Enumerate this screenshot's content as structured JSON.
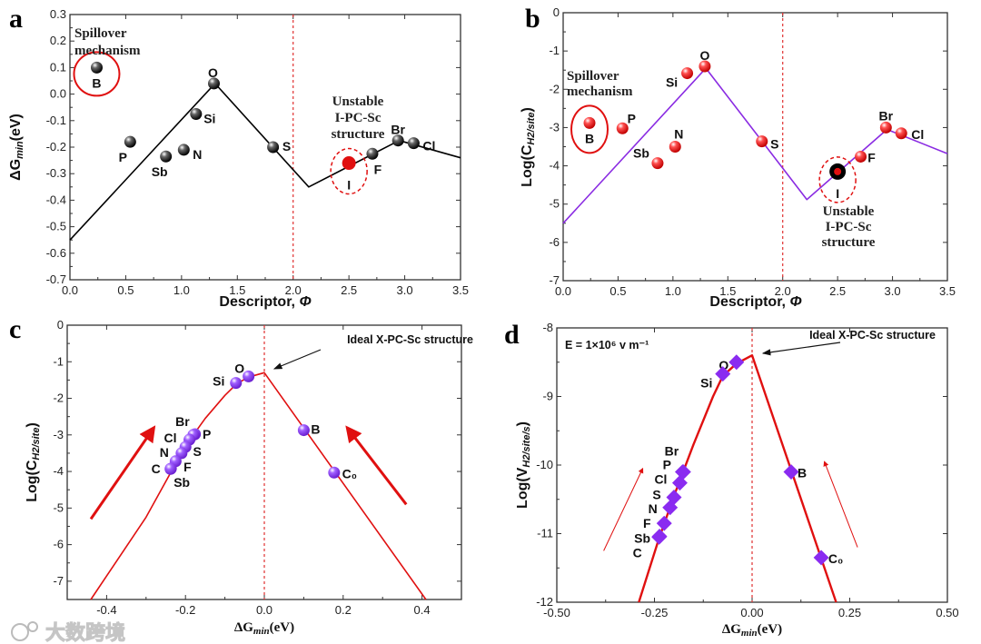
{
  "watermark": "大数跨境",
  "colors": {
    "fit_ab_a": "#000000",
    "fit_b": "#8a2be2",
    "fit_cd": "#e01010",
    "divider": "#e03030",
    "highlight": "#e01010"
  },
  "chart_data": [
    {
      "panel_label": "a",
      "type": "scatter",
      "title": "",
      "xlabel": [
        "Descriptor, ",
        "Φ"
      ],
      "ylabel": [
        "ΔG",
        "min",
        "(eV)"
      ],
      "xlim": [
        0,
        3.5
      ],
      "ylim": [
        -0.7,
        0.3
      ],
      "xticks": [
        "0.0",
        "0.5",
        "1.0",
        "1.5",
        "2.0",
        "2.5",
        "3.0",
        "3.5"
      ],
      "yticks": [
        "-0.7",
        "-0.6",
        "-0.5",
        "-0.4",
        "-0.3",
        "-0.2",
        "-0.1",
        "0.0",
        "0.1",
        "0.2",
        "0.3"
      ],
      "marker": "sphere",
      "marker_color": "#111111",
      "line_color": "#000000",
      "divider_x": 2.0,
      "points": [
        {
          "label": "B",
          "x": 0.24,
          "y": 0.1
        },
        {
          "label": "P",
          "x": 0.54,
          "y": -0.18
        },
        {
          "label": "Sb",
          "x": 0.86,
          "y": -0.235
        },
        {
          "label": "N",
          "x": 1.02,
          "y": -0.21
        },
        {
          "label": "Si",
          "x": 1.13,
          "y": -0.075
        },
        {
          "label": "O",
          "x": 1.29,
          "y": 0.04
        },
        {
          "label": "S",
          "x": 1.82,
          "y": -0.2
        },
        {
          "label": "I",
          "x": 2.5,
          "y": -0.26,
          "highlight": true
        },
        {
          "label": "F",
          "x": 2.71,
          "y": -0.225
        },
        {
          "label": "Br",
          "x": 2.94,
          "y": -0.175
        },
        {
          "label": "Cl",
          "x": 3.08,
          "y": -0.185
        }
      ],
      "fit_line": [
        [
          0,
          -0.55
        ],
        [
          1.3,
          0.04
        ],
        [
          2.14,
          -0.35
        ],
        [
          2.95,
          -0.175
        ],
        [
          3.5,
          -0.24
        ]
      ],
      "annotations": [
        "Spillover mechanism",
        "Unstable I-PC-Sc structure"
      ]
    },
    {
      "panel_label": "b",
      "type": "scatter",
      "title": "",
      "xlabel": [
        "Descriptor, ",
        "Φ"
      ],
      "ylabel": [
        "Log(C",
        "H2/site",
        ")"
      ],
      "xlim": [
        0,
        3.5
      ],
      "ylim": [
        -7,
        0
      ],
      "xticks": [
        "0.0",
        "0.5",
        "1.0",
        "1.5",
        "2.0",
        "2.5",
        "3.0",
        "3.5"
      ],
      "yticks": [
        "-7",
        "-6",
        "-5",
        "-4",
        "-3",
        "-2",
        "-1",
        "0"
      ],
      "marker": "sphere",
      "marker_color": "#e01010",
      "line_color": "#8a2be2",
      "divider_x": 2.0,
      "points": [
        {
          "label": "B",
          "x": 0.24,
          "y": -2.88
        },
        {
          "label": "P",
          "x": 0.54,
          "y": -3.02
        },
        {
          "label": "Sb",
          "x": 0.86,
          "y": -3.93
        },
        {
          "label": "N",
          "x": 1.02,
          "y": -3.5
        },
        {
          "label": "Si",
          "x": 1.13,
          "y": -1.58
        },
        {
          "label": "O",
          "x": 1.29,
          "y": -1.4
        },
        {
          "label": "S",
          "x": 1.81,
          "y": -3.36
        },
        {
          "label": "I",
          "x": 2.5,
          "y": -4.15,
          "highlight": true
        },
        {
          "label": "F",
          "x": 2.71,
          "y": -3.76
        },
        {
          "label": "Br",
          "x": 2.94,
          "y": -3.0
        },
        {
          "label": "Cl",
          "x": 3.08,
          "y": -3.15
        }
      ],
      "fit_line": [
        [
          0,
          -5.5
        ],
        [
          1.3,
          -1.45
        ],
        [
          2.22,
          -4.88
        ],
        [
          2.95,
          -3.05
        ],
        [
          3.5,
          -3.68
        ]
      ],
      "annotations": [
        "Spillover mechanism",
        "Unstable I-PC-Sc structure"
      ]
    },
    {
      "panel_label": "c",
      "type": "scatter",
      "title": "",
      "xlabel": [
        "ΔG",
        "min",
        "(eV)"
      ],
      "ylabel": [
        "Log(C",
        "H2/site",
        ")"
      ],
      "xlim": [
        -0.5,
        0.5
      ],
      "ylim": [
        -7.5,
        0
      ],
      "xticks": [
        "-0.4",
        "-0.2",
        "0.0",
        "0.2",
        "0.4"
      ],
      "xtick_values": [
        -0.4,
        -0.2,
        0,
        0.2,
        0.4
      ],
      "yticks": [
        "-7",
        "-6",
        "-5",
        "-4",
        "-3",
        "-2",
        "-1",
        "0"
      ],
      "marker": "sphere",
      "marker_color": "#8a3cf0",
      "line_color": "#e01010",
      "divider_x": 0,
      "points": [
        {
          "label": "O",
          "x": -0.04,
          "y": -1.4
        },
        {
          "label": "Si",
          "x": -0.072,
          "y": -1.58
        },
        {
          "label": "P",
          "x": -0.176,
          "y": -2.98
        },
        {
          "label": "Br",
          "x": -0.18,
          "y": -3.0
        },
        {
          "label": "Cl",
          "x": -0.19,
          "y": -3.13
        },
        {
          "label": "S",
          "x": -0.2,
          "y": -3.33
        },
        {
          "label": "N",
          "x": -0.21,
          "y": -3.5
        },
        {
          "label": "F",
          "x": -0.225,
          "y": -3.72
        },
        {
          "label": "Sb",
          "x": -0.237,
          "y": -3.92
        },
        {
          "label": "C",
          "x": -0.238,
          "y": -3.93
        },
        {
          "label": "B",
          "x": 0.1,
          "y": -2.87
        },
        {
          "label": "C₀",
          "x": 0.177,
          "y": -4.03
        }
      ],
      "fit_line": [
        [
          -0.44,
          -7.5
        ],
        [
          -0.3,
          -5.25
        ],
        [
          -0.2,
          -3.3
        ],
        [
          -0.15,
          -2.55
        ],
        [
          -0.1,
          -1.92
        ],
        [
          -0.07,
          -1.6
        ],
        [
          -0.04,
          -1.42
        ],
        [
          0,
          -1.3
        ],
        [
          0.41,
          -7.5
        ]
      ],
      "trend_arrows": [
        [
          [
            -0.44,
            -5.3
          ],
          [
            -0.28,
            -2.8
          ]
        ],
        [
          [
            0.36,
            -4.9
          ],
          [
            0.21,
            -2.8
          ]
        ]
      ],
      "annotations": [
        "Ideal X-PC-Sc structure"
      ]
    },
    {
      "panel_label": "d",
      "type": "scatter",
      "title": "",
      "xlabel": [
        "ΔG",
        "min",
        "(eV)"
      ],
      "ylabel": [
        "Log(V",
        "H2/site/s",
        ")"
      ],
      "xlim": [
        -0.5,
        0.5
      ],
      "ylim": [
        -12,
        -8
      ],
      "xticks": [
        "-0.50",
        "-0.25",
        "0.00",
        "0.25",
        "0.50"
      ],
      "xtick_values": [
        -0.5,
        -0.25,
        0,
        0.25,
        0.5
      ],
      "yticks": [
        "-12",
        "-11",
        "-10",
        "-9",
        "-8"
      ],
      "marker": "diamond",
      "marker_color": "#8a2bf0",
      "line_color": "#e01010",
      "divider_x": 0,
      "points": [
        {
          "label": "O",
          "x": -0.04,
          "y": -8.5
        },
        {
          "label": "Si",
          "x": -0.075,
          "y": -8.67
        },
        {
          "label": "P",
          "x": -0.176,
          "y": -10.1
        },
        {
          "label": "Br",
          "x": -0.178,
          "y": -10.1
        },
        {
          "label": "Cl",
          "x": -0.185,
          "y": -10.26
        },
        {
          "label": "S",
          "x": -0.2,
          "y": -10.47
        },
        {
          "label": "N",
          "x": -0.21,
          "y": -10.62
        },
        {
          "label": "F",
          "x": -0.225,
          "y": -10.85
        },
        {
          "label": "Sb",
          "x": -0.237,
          "y": -11.04
        },
        {
          "label": "C",
          "x": -0.238,
          "y": -11.05
        },
        {
          "label": "B",
          "x": 0.1,
          "y": -10.1
        },
        {
          "label": "C₀",
          "x": 0.177,
          "y": -11.35
        }
      ],
      "fit_line": [
        [
          -0.29,
          -12
        ],
        [
          -0.24,
          -11.1
        ],
        [
          -0.2,
          -10.45
        ],
        [
          -0.15,
          -9.7
        ],
        [
          -0.1,
          -9.0
        ],
        [
          -0.075,
          -8.7
        ],
        [
          -0.04,
          -8.52
        ],
        [
          0,
          -8.4
        ],
        [
          0.215,
          -12
        ]
      ],
      "trend_arrows": [
        [
          [
            -0.38,
            -11.25
          ],
          [
            -0.28,
            -10.05
          ]
        ],
        [
          [
            0.27,
            -11.2
          ],
          [
            0.185,
            -9.95
          ]
        ]
      ],
      "annotations": [
        "Ideal X-PC-Sc structure",
        "E = 1×10⁶ v m⁻¹"
      ]
    }
  ]
}
